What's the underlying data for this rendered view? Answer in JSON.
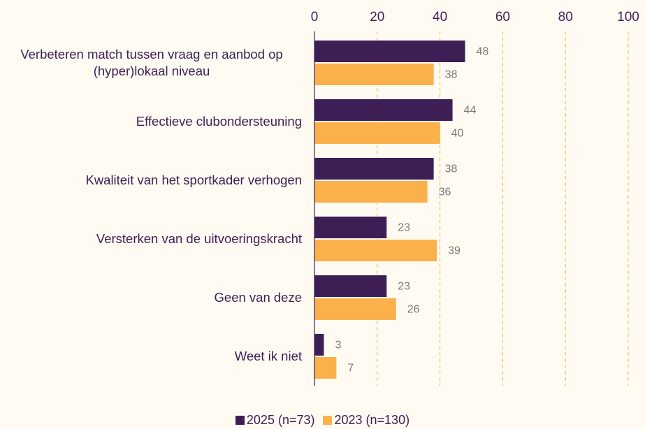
{
  "chart_data": {
    "type": "hbar",
    "categories": [
      "Verbeteren match tussen vraag en aanbod op (hyper)lokaal niveau",
      "Effectieve clubondersteuning",
      "Kwaliteit van het sportkader verhogen",
      "Versterken van de uitvoeringskracht",
      "Geen van deze",
      "Weet ik niet"
    ],
    "series": [
      {
        "name": "2025 (n=73)",
        "color": "#3d1f55",
        "values": [
          48,
          44,
          38,
          23,
          23,
          3
        ]
      },
      {
        "name": "2023 (n=130)",
        "color": "#fbb14b",
        "values": [
          38,
          40,
          36,
          39,
          26,
          7
        ]
      }
    ],
    "xlim": [
      0,
      100
    ],
    "xticks": [
      0,
      20,
      40,
      60,
      80,
      100
    ],
    "grid": true,
    "legend": "bottom"
  }
}
